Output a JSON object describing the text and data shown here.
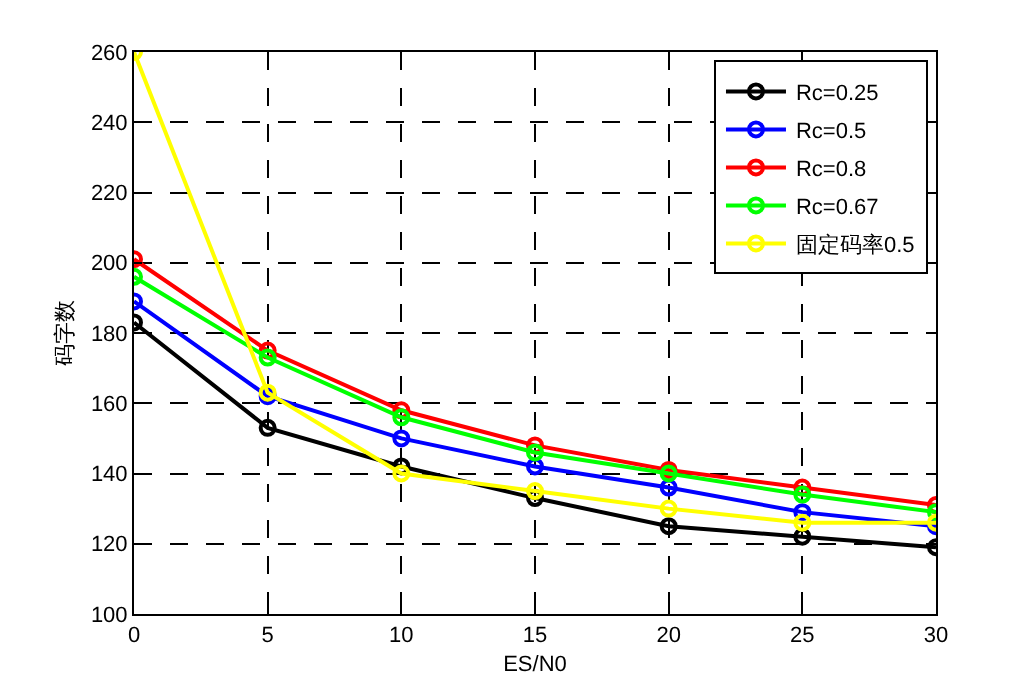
{
  "chart_data": {
    "type": "line",
    "xlabel": "ES/N0",
    "ylabel": "码字数",
    "x": [
      0,
      5,
      10,
      15,
      20,
      25,
      30
    ],
    "xlim": [
      0,
      30
    ],
    "xticks": [
      0,
      5,
      10,
      15,
      20,
      25,
      30
    ],
    "ylim": [
      100,
      260
    ],
    "yticks": [
      100,
      120,
      140,
      160,
      180,
      200,
      220,
      240,
      260
    ],
    "grid": true,
    "legend": "top right",
    "marker": "circle",
    "line_style": "solid",
    "series": [
      {
        "name": "Rc=0.25",
        "color": "#000000",
        "values": [
          183,
          153,
          142,
          133,
          125,
          122,
          119
        ]
      },
      {
        "name": "Rc=0.5",
        "color": "#0000ff",
        "values": [
          189,
          162,
          150,
          142,
          136,
          129,
          125
        ]
      },
      {
        "name": "Rc=0.8",
        "color": "#ff0000",
        "values": [
          201,
          175,
          158,
          148,
          141,
          136,
          131
        ]
      },
      {
        "name": "Rc=0.67",
        "color": "#00ff00",
        "values": [
          196,
          173,
          156,
          146,
          140,
          134,
          129
        ]
      },
      {
        "name": "固定码率0.5",
        "color": "#ffff00",
        "values": [
          260,
          163,
          140,
          135,
          130,
          126,
          126
        ]
      }
    ]
  }
}
